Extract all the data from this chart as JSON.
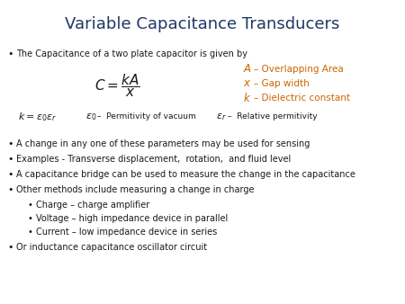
{
  "title": "Variable Capacitance Transducers",
  "title_color": "#1F3864",
  "title_fontsize": 13,
  "bg_color": "#ffffff",
  "bullet_color": "#1a1a1a",
  "orange_color": "#CC6600",
  "bullet_fontsize": 7.0,
  "bullets": [
    "The Capacitance of a two plate capacitor is given by",
    "A change in any one of these parameters may be used for sensing",
    "Examples - Transverse displacement,  rotation,  and fluid level",
    "A capacitance bridge can be used to measure the change in the capacitance",
    "Other methods include measuring a change in charge",
    "Or inductance capacitance oscillator circuit"
  ],
  "sub_bullets": [
    "Charge – charge amplifier",
    "Voltage – high impedance device in parallel",
    "Current – low impedance device in series"
  ]
}
